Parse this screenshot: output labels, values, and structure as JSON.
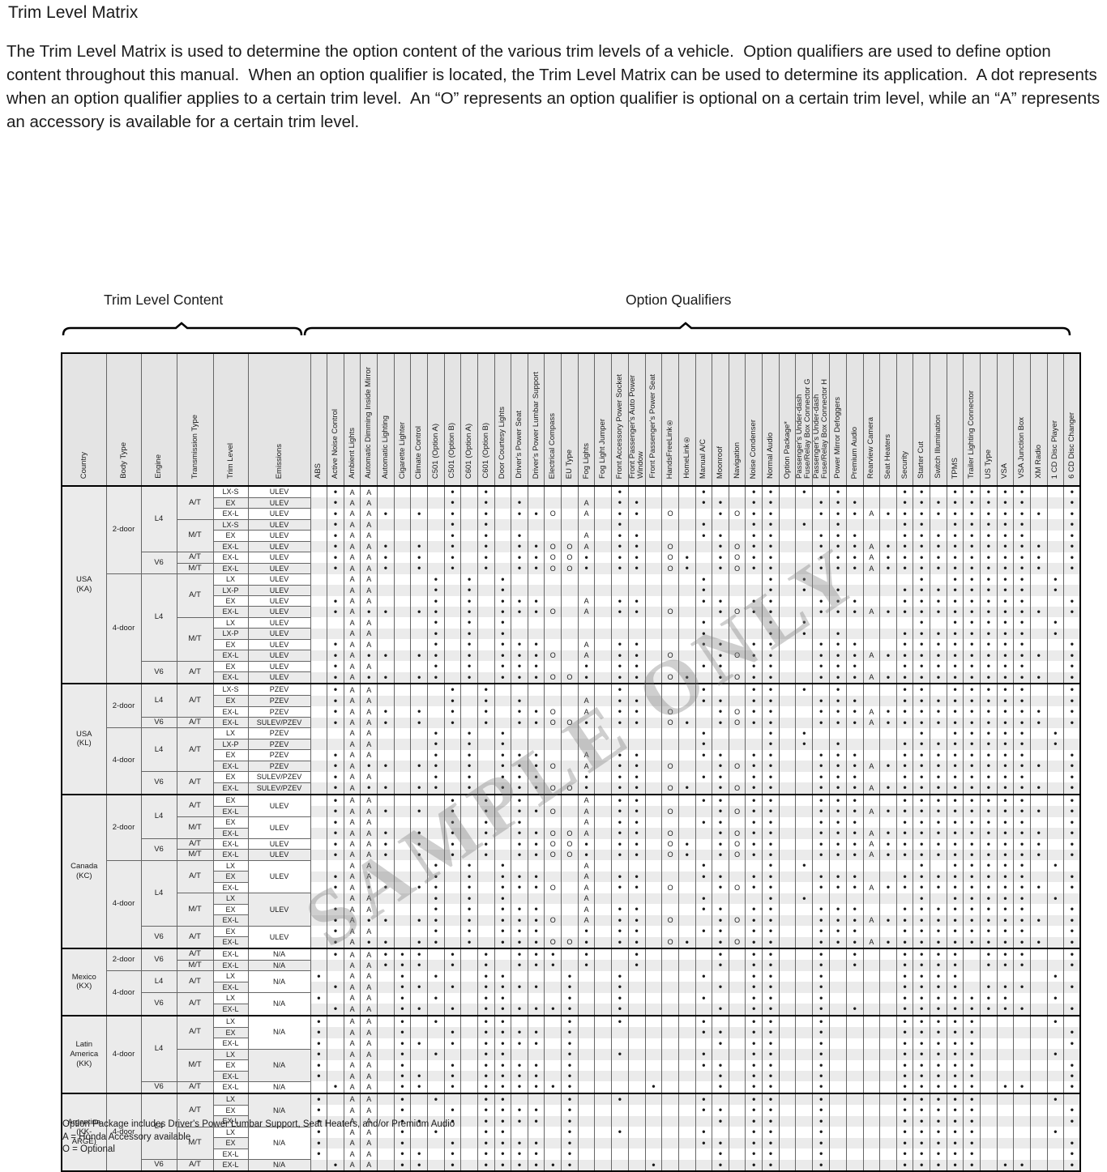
{
  "title": "Trim Level Matrix",
  "intro": "The Trim Level Matrix is used to determine the option content of the various trim levels of a vehicle.  Option qualifiers are used to define option content throughout this manual.  When an option qualifier is located, the Trim Level Matrix can be used to determine its application.  A dot represents when an option qualifier applies to a certain trim level.  An “O” represents an option qualifier is optional on a certain trim level, while an “A” represents an accessory is available for a certain trim level.",
  "section_labels": {
    "left": "Trim Level Content",
    "right": "Option Qualifiers"
  },
  "watermark": "SAMPLE ONLY",
  "legend": {
    "line1": "Option Package includes Driver's Power Lumbar Support, Seat Heaters, and/or Premium Audio",
    "line2": "A = Honda Accessory available",
    "line3": "O = Optional"
  },
  "symbols": {
    "d": "•",
    "A": "A",
    "O": "O"
  },
  "info_headers": [
    "Country",
    "Body Type",
    "Engine",
    "Transmission Type",
    "Trim Level",
    "Emissions"
  ],
  "option_headers": [
    "ABS",
    "Active Noise Control",
    "Ambient Lights",
    "Automatic Dimming Inside Mirror",
    "Automatic Lighting",
    "Cigarette Lighter",
    "Climate Control",
    "C501 (Option A)",
    "C501 (Option B)",
    "C601 (Option A)",
    "C601 (Option B)",
    "Door Courtesy Lights",
    "Driver's Power Seat",
    "Driver's Power Lumbar Support",
    "Electrical Compass",
    "EU Type",
    "Fog Lights",
    "Fog Light Jumper",
    "Front Accessory Power Socket",
    "Front Passenger's Auto Power Window",
    "Front Passenger's Power Seat",
    "HandsFreeLink®",
    "HomeLink®",
    "Manual A/C",
    "Moonroof",
    "Navigation",
    "Noise Condenser",
    "Normal Audio",
    "Option Package*",
    "Passenger's Under-dash Fuse/Relay Box Connector G",
    "Passenger's Under-dash Fuse/Relay Box Connector H",
    "Power Mirror Defoggers",
    "Premium Audio",
    "Rearview Camera",
    "Seat Heaters",
    "Security",
    "Starter Cut",
    "Switch Illumination",
    "TPMS",
    "Trailer Lighting Connector",
    "US Type",
    "VSA",
    "VSA Junction Box",
    "XM Radio",
    "1 CD Disc Player",
    "6 CD Disc Changer"
  ],
  "patterns": {
    "p_lxs": {
      "2": "d",
      "3": "A",
      "4": "A",
      "9": "d",
      "11": "d",
      "19": "d",
      "24": "d",
      "27": "d",
      "28": "d",
      "30": "d",
      "32": "d",
      "36": "d",
      "37": "d",
      "39": "d",
      "40": "d",
      "41": "d",
      "42": "d",
      "43": "d",
      "46": "d"
    },
    "p_ex2": {
      "2": "d",
      "3": "A",
      "4": "A",
      "9": "d",
      "11": "d",
      "13": "d",
      "17": "A",
      "19": "d",
      "20": "d",
      "24": "d",
      "25": "d",
      "27": "d",
      "28": "d",
      "31": "d",
      "32": "d",
      "33": "d",
      "36": "d",
      "37": "d",
      "38": "d",
      "39": "d",
      "40": "d",
      "41": "d",
      "42": "d",
      "43": "d",
      "46": "d"
    },
    "p_exl2": {
      "2": "d",
      "3": "A",
      "4": "A",
      "5": "d",
      "7": "d",
      "9": "d",
      "11": "d",
      "13": "d",
      "14": "d",
      "15": "O",
      "17": "A",
      "19": "d",
      "20": "d",
      "22": "O",
      "25": "d",
      "26": "O",
      "27": "d",
      "28": "d",
      "31": "d",
      "32": "d",
      "33": "d",
      "34": "A",
      "35": "d",
      "36": "d",
      "37": "d",
      "38": "d",
      "39": "d",
      "40": "d",
      "41": "d",
      "42": "d",
      "43": "d",
      "44": "d",
      "46": "d"
    },
    "p_exl2m": {
      "2": "d",
      "3": "A",
      "4": "A",
      "5": "d",
      "7": "d",
      "9": "d",
      "11": "d",
      "13": "d",
      "14": "d",
      "15": "O",
      "16": "O",
      "17": "A",
      "19": "d",
      "20": "d",
      "22": "O",
      "25": "d",
      "26": "O",
      "27": "d",
      "28": "d",
      "31": "d",
      "32": "d",
      "33": "d",
      "34": "A",
      "35": "d",
      "36": "d",
      "37": "d",
      "38": "d",
      "39": "d",
      "40": "d",
      "41": "d",
      "42": "d",
      "43": "d",
      "44": "d",
      "46": "d"
    },
    "p_v6exl2": {
      "2": "d",
      "3": "A",
      "4": "A",
      "5": "d",
      "7": "d",
      "9": "d",
      "11": "d",
      "13": "d",
      "14": "d",
      "15": "O",
      "16": "O",
      "17": "d",
      "19": "d",
      "20": "d",
      "22": "O",
      "23": "d",
      "25": "d",
      "26": "O",
      "27": "d",
      "28": "d",
      "31": "d",
      "32": "d",
      "33": "d",
      "34": "A",
      "35": "d",
      "36": "d",
      "37": "d",
      "38": "d",
      "39": "d",
      "40": "d",
      "41": "d",
      "42": "d",
      "43": "d",
      "44": "d",
      "46": "d"
    },
    "p_lx4": {
      "3": "A",
      "4": "A",
      "8": "d",
      "10": "d",
      "12": "d",
      "24": "d",
      "28": "d",
      "30": "d",
      "37": "d",
      "39": "d",
      "40": "d",
      "41": "d",
      "42": "d",
      "43": "d",
      "45": "d"
    },
    "p_lx4a": {
      "3": "A",
      "4": "A",
      "8": "d",
      "10": "d",
      "12": "d",
      "17": "A",
      "24": "d",
      "28": "d",
      "30": "d",
      "37": "d",
      "39": "d",
      "40": "d",
      "41": "d",
      "42": "d",
      "43": "d",
      "45": "d"
    },
    "p_lxp4": {
      "3": "A",
      "4": "A",
      "8": "d",
      "10": "d",
      "12": "d",
      "24": "d",
      "28": "d",
      "30": "d",
      "32": "d",
      "36": "d",
      "37": "d",
      "38": "d",
      "39": "d",
      "40": "d",
      "41": "d",
      "42": "d",
      "43": "d",
      "45": "d"
    },
    "p_ex4": {
      "2": "d",
      "3": "A",
      "4": "A",
      "8": "d",
      "10": "d",
      "12": "d",
      "13": "d",
      "14": "d",
      "17": "A",
      "19": "d",
      "20": "d",
      "24": "d",
      "25": "d",
      "27": "d",
      "28": "d",
      "31": "d",
      "32": "d",
      "33": "d",
      "36": "d",
      "37": "d",
      "38": "d",
      "39": "d",
      "40": "d",
      "41": "d",
      "42": "d",
      "43": "d",
      "46": "d"
    },
    "p_exl4": {
      "2": "d",
      "3": "A",
      "4": "d",
      "5": "d",
      "7": "d",
      "8": "d",
      "10": "d",
      "12": "d",
      "13": "d",
      "14": "d",
      "15": "O",
      "17": "A",
      "19": "d",
      "20": "d",
      "22": "O",
      "25": "d",
      "26": "O",
      "27": "d",
      "28": "d",
      "31": "d",
      "32": "d",
      "33": "d",
      "34": "A",
      "35": "d",
      "36": "d",
      "37": "d",
      "38": "d",
      "39": "d",
      "40": "d",
      "41": "d",
      "42": "d",
      "43": "d",
      "44": "d",
      "46": "d"
    },
    "p_v6ex4": {
      "2": "d",
      "3": "A",
      "4": "A",
      "8": "d",
      "10": "d",
      "12": "d",
      "13": "d",
      "14": "d",
      "17": "d",
      "19": "d",
      "20": "d",
      "24": "d",
      "25": "d",
      "27": "d",
      "28": "d",
      "31": "d",
      "32": "d",
      "33": "d",
      "36": "d",
      "37": "d",
      "38": "d",
      "39": "d",
      "40": "d",
      "41": "d",
      "42": "d",
      "43": "d",
      "46": "d"
    },
    "p_v6exl4": {
      "2": "d",
      "3": "A",
      "4": "d",
      "5": "d",
      "7": "d",
      "8": "d",
      "10": "d",
      "12": "d",
      "13": "d",
      "14": "d",
      "15": "O",
      "16": "O",
      "17": "d",
      "19": "d",
      "20": "d",
      "22": "O",
      "23": "d",
      "25": "d",
      "26": "O",
      "27": "d",
      "28": "d",
      "31": "d",
      "32": "d",
      "33": "d",
      "34": "A",
      "35": "d",
      "36": "d",
      "37": "d",
      "38": "d",
      "39": "d",
      "40": "d",
      "41": "d",
      "42": "d",
      "43": "d",
      "44": "d",
      "46": "d"
    },
    "p_mx2": {
      "2": "d",
      "3": "A",
      "4": "A",
      "5": "d",
      "6": "d",
      "7": "d",
      "9": "d",
      "11": "d",
      "13": "d",
      "14": "d",
      "15": "d",
      "17": "d",
      "20": "d",
      "25": "d",
      "27": "d",
      "28": "d",
      "31": "d",
      "33": "d",
      "36": "d",
      "37": "d",
      "38": "d",
      "39": "d",
      "41": "d",
      "42": "d",
      "43": "d",
      "46": "d"
    },
    "p_mx2m": {
      "3": "A",
      "4": "A",
      "5": "d",
      "6": "d",
      "7": "d",
      "9": "d",
      "11": "d",
      "13": "d",
      "14": "d",
      "15": "d",
      "17": "d",
      "20": "d",
      "25": "d",
      "27": "d",
      "28": "d",
      "31": "d",
      "33": "d",
      "36": "d",
      "37": "d",
      "38": "d",
      "39": "d",
      "41": "d",
      "42": "d",
      "43": "d",
      "46": "d"
    },
    "p_mxlx": {
      "1": "d",
      "3": "A",
      "4": "A",
      "6": "d",
      "8": "d",
      "11": "d",
      "12": "d",
      "16": "d",
      "19": "d",
      "24": "d",
      "27": "d",
      "28": "d",
      "31": "d",
      "36": "d",
      "37": "d",
      "38": "d",
      "39": "d",
      "45": "d"
    },
    "p_mxexl": {
      "2": "d",
      "3": "A",
      "4": "A",
      "6": "d",
      "7": "d",
      "9": "d",
      "11": "d",
      "12": "d",
      "13": "d",
      "14": "d",
      "16": "d",
      "19": "d",
      "25": "d",
      "27": "d",
      "28": "d",
      "31": "d",
      "36": "d",
      "37": "d",
      "38": "d",
      "39": "d",
      "41": "d",
      "42": "d",
      "43": "d",
      "46": "d"
    },
    "p_mxlx6": {
      "1": "d",
      "3": "A",
      "4": "A",
      "6": "d",
      "8": "d",
      "11": "d",
      "12": "d",
      "16": "d",
      "19": "d",
      "24": "d",
      "27": "d",
      "28": "d",
      "31": "d",
      "36": "d",
      "37": "d",
      "38": "d",
      "39": "d",
      "40": "d",
      "41": "d",
      "42": "d",
      "45": "d"
    },
    "p_mxexl6": {
      "2": "d",
      "3": "A",
      "4": "A",
      "6": "d",
      "7": "d",
      "9": "d",
      "11": "d",
      "12": "d",
      "13": "d",
      "14": "d",
      "15": "d",
      "16": "d",
      "19": "d",
      "25": "d",
      "27": "d",
      "28": "d",
      "31": "d",
      "33": "d",
      "36": "d",
      "37": "d",
      "38": "d",
      "39": "d",
      "40": "d",
      "41": "d",
      "42": "d",
      "43": "d",
      "46": "d"
    },
    "p_lalx": {
      "1": "d",
      "3": "A",
      "4": "A",
      "6": "d",
      "8": "d",
      "11": "d",
      "12": "d",
      "16": "d",
      "19": "d",
      "24": "d",
      "27": "d",
      "28": "d",
      "31": "d",
      "36": "d",
      "37": "d",
      "38": "d",
      "39": "d",
      "40": "d",
      "45": "d"
    },
    "p_laex": {
      "1": "d",
      "3": "A",
      "4": "A",
      "6": "d",
      "9": "d",
      "11": "d",
      "12": "d",
      "13": "d",
      "14": "d",
      "16": "d",
      "24": "d",
      "25": "d",
      "27": "d",
      "28": "d",
      "31": "d",
      "36": "d",
      "37": "d",
      "38": "d",
      "39": "d",
      "40": "d",
      "46": "d"
    },
    "p_laexl": {
      "1": "d",
      "3": "A",
      "4": "A",
      "6": "d",
      "7": "d",
      "9": "d",
      "11": "d",
      "12": "d",
      "13": "d",
      "14": "d",
      "16": "d",
      "25": "d",
      "27": "d",
      "28": "d",
      "31": "d",
      "36": "d",
      "37": "d",
      "38": "d",
      "39": "d",
      "40": "d",
      "46": "d"
    },
    "p_lav6": {
      "2": "d",
      "3": "A",
      "4": "A",
      "6": "d",
      "7": "d",
      "9": "d",
      "11": "d",
      "12": "d",
      "13": "d",
      "14": "d",
      "15": "d",
      "16": "d",
      "21": "d",
      "25": "d",
      "27": "d",
      "28": "d",
      "31": "d",
      "36": "d",
      "37": "d",
      "38": "d",
      "39": "d",
      "40": "d",
      "42": "d",
      "43": "d",
      "46": "d"
    }
  },
  "rows": [
    {
      "sep": true,
      "c": "USA\n(KA)",
      "cs": 18,
      "b": "2-door",
      "bs": 8,
      "e": "L4",
      "es": 6,
      "t": "A/T",
      "ts": 3,
      "trim": "LX-S",
      "em": "ULEV",
      "ems": 1,
      "p": "p_lxs"
    },
    {
      "trim": "EX",
      "em": "ULEV",
      "ems": 1,
      "p": "p_ex2"
    },
    {
      "trim": "EX-L",
      "em": "ULEV",
      "ems": 1,
      "p": "p_exl2"
    },
    {
      "t": "M/T",
      "ts": 3,
      "trim": "LX-S",
      "em": "ULEV",
      "ems": 1,
      "p": "p_lxs"
    },
    {
      "trim": "EX",
      "em": "ULEV",
      "ems": 1,
      "p": "p_ex2"
    },
    {
      "trim": "EX-L",
      "em": "ULEV",
      "ems": 1,
      "p": "p_exl2m"
    },
    {
      "e": "V6",
      "es": 2,
      "t": "A/T",
      "ts": 1,
      "trim": "EX-L",
      "em": "ULEV",
      "ems": 1,
      "p": "p_v6exl2"
    },
    {
      "t": "M/T",
      "ts": 1,
      "trim": "EX-L",
      "em": "ULEV",
      "ems": 1,
      "p": "p_v6exl2"
    },
    {
      "b": "4-door",
      "bs": 10,
      "e": "L4",
      "es": 8,
      "t": "A/T",
      "ts": 4,
      "trim": "LX",
      "em": "ULEV",
      "ems": 1,
      "p": "p_lx4"
    },
    {
      "trim": "LX-P",
      "em": "ULEV",
      "ems": 1,
      "p": "p_lxp4"
    },
    {
      "trim": "EX",
      "em": "ULEV",
      "ems": 1,
      "p": "p_ex4"
    },
    {
      "trim": "EX-L",
      "em": "ULEV",
      "ems": 1,
      "p": "p_exl4"
    },
    {
      "t": "M/T",
      "ts": 4,
      "trim": "LX",
      "em": "ULEV",
      "ems": 1,
      "p": "p_lx4"
    },
    {
      "trim": "LX-P",
      "em": "ULEV",
      "ems": 1,
      "p": "p_lxp4"
    },
    {
      "trim": "EX",
      "em": "ULEV",
      "ems": 1,
      "p": "p_ex4"
    },
    {
      "trim": "EX-L",
      "em": "ULEV",
      "ems": 1,
      "p": "p_exl4"
    },
    {
      "e": "V6",
      "es": 2,
      "t": "A/T",
      "ts": 2,
      "trim": "EX",
      "em": "ULEV",
      "ems": 1,
      "p": "p_v6ex4"
    },
    {
      "trim": "EX-L",
      "em": "ULEV",
      "ems": 1,
      "p": "p_v6exl4"
    },
    {
      "sep": true,
      "c": "USA\n(KL)",
      "cs": 10,
      "b": "2-door",
      "bs": 4,
      "e": "L4",
      "es": 3,
      "t": "A/T",
      "ts": 3,
      "trim": "LX-S",
      "em": "PZEV",
      "ems": 1,
      "p": "p_lxs"
    },
    {
      "trim": "EX",
      "em": "PZEV",
      "ems": 1,
      "p": "p_ex2"
    },
    {
      "trim": "EX-L",
      "em": "PZEV",
      "ems": 1,
      "p": "p_exl2"
    },
    {
      "e": "V6",
      "es": 1,
      "t": "A/T",
      "ts": 1,
      "trim": "EX-L",
      "em": "SULEV/PZEV",
      "ems": 1,
      "p": "p_v6exl2"
    },
    {
      "b": "4-door",
      "bs": 6,
      "e": "L4",
      "es": 4,
      "t": "A/T",
      "ts": 4,
      "trim": "LX",
      "em": "PZEV",
      "ems": 1,
      "p": "p_lx4"
    },
    {
      "trim": "LX-P",
      "em": "PZEV",
      "ems": 1,
      "p": "p_lxp4"
    },
    {
      "trim": "EX",
      "em": "PZEV",
      "ems": 1,
      "p": "p_ex4"
    },
    {
      "trim": "EX-L",
      "em": "PZEV",
      "ems": 1,
      "p": "p_exl4"
    },
    {
      "e": "V6",
      "es": 2,
      "t": "A/T",
      "ts": 2,
      "trim": "EX",
      "em": "SULEV/PZEV",
      "ems": 1,
      "p": "p_v6ex4"
    },
    {
      "trim": "EX-L",
      "em": "SULEV/PZEV",
      "ems": 1,
      "p": "p_v6exl4"
    },
    {
      "sep": true,
      "c": "Canada\n(KC)",
      "cs": 14,
      "b": "2-door",
      "bs": 6,
      "e": "L4",
      "es": 4,
      "t": "A/T",
      "ts": 2,
      "trim": "EX",
      "em": "ULEV",
      "ems": 2,
      "p": "p_ex2"
    },
    {
      "trim": "EX-L",
      "ems": 0,
      "p": "p_exl2"
    },
    {
      "t": "M/T",
      "ts": 2,
      "trim": "EX",
      "em": "ULEV",
      "ems": 2,
      "p": "p_ex2"
    },
    {
      "trim": "EX-L",
      "ems": 0,
      "p": "p_exl2m"
    },
    {
      "e": "V6",
      "es": 2,
      "t": "A/T",
      "ts": 1,
      "trim": "EX-L",
      "em": "ULEV",
      "ems": 1,
      "p": "p_v6exl2"
    },
    {
      "t": "M/T",
      "ts": 1,
      "trim": "EX-L",
      "em": "ULEV",
      "ems": 1,
      "p": "p_v6exl2"
    },
    {
      "b": "4-door",
      "bs": 8,
      "e": "L4",
      "es": 6,
      "t": "A/T",
      "ts": 3,
      "trim": "LX",
      "em": "ULEV",
      "ems": 3,
      "p": "p_lx4a"
    },
    {
      "trim": "EX",
      "ems": 0,
      "p": "p_ex4"
    },
    {
      "trim": "EX-L",
      "ems": 0,
      "p": "p_exl4"
    },
    {
      "t": "M/T",
      "ts": 3,
      "trim": "LX",
      "em": "ULEV",
      "ems": 3,
      "p": "p_lx4a"
    },
    {
      "trim": "EX",
      "ems": 0,
      "p": "p_ex4"
    },
    {
      "trim": "EX-L",
      "ems": 0,
      "p": "p_exl4"
    },
    {
      "e": "V6",
      "es": 2,
      "t": "A/T",
      "ts": 2,
      "trim": "EX",
      "em": "ULEV",
      "ems": 2,
      "p": "p_v6ex4"
    },
    {
      "trim": "EX-L",
      "ems": 0,
      "p": "p_v6exl4"
    },
    {
      "sep": true,
      "c": "Mexico\n(KX)",
      "cs": 6,
      "b": "2-door",
      "bs": 2,
      "e": "V6",
      "es": 2,
      "t": "A/T",
      "ts": 1,
      "trim": "EX-L",
      "em": "N/A",
      "ems": 1,
      "p": "p_mx2"
    },
    {
      "t": "M/T",
      "ts": 1,
      "trim": "EX-L",
      "em": "N/A",
      "ems": 1,
      "p": "p_mx2m"
    },
    {
      "b": "4-door",
      "bs": 4,
      "e": "L4",
      "es": 2,
      "t": "A/T",
      "ts": 2,
      "trim": "LX",
      "em": "N/A",
      "ems": 2,
      "p": "p_mxlx"
    },
    {
      "trim": "EX-L",
      "ems": 0,
      "p": "p_mxexl"
    },
    {
      "e": "V6",
      "es": 2,
      "t": "A/T",
      "ts": 2,
      "trim": "LX",
      "em": "N/A",
      "ems": 2,
      "p": "p_mxlx6"
    },
    {
      "trim": "EX-L",
      "ems": 0,
      "p": "p_mxexl6"
    },
    {
      "sep": true,
      "c": "Latin\nAmerica\n(KK)",
      "cs": 7,
      "b": "4-door",
      "bs": 7,
      "e": "L4",
      "es": 6,
      "t": "A/T",
      "ts": 3,
      "trim": "LX",
      "em": "N/A",
      "ems": 3,
      "p": "p_lalx"
    },
    {
      "trim": "EX",
      "ems": 0,
      "p": "p_laex"
    },
    {
      "trim": "EX-L",
      "ems": 0,
      "p": "p_laexl"
    },
    {
      "t": "M/T",
      "ts": 3,
      "trim": "LX",
      "em": "N/A",
      "ems": 3,
      "p": "p_lalx"
    },
    {
      "trim": "EX",
      "ems": 0,
      "p": "p_laex"
    },
    {
      "trim": "EX-L",
      "ems": 0,
      "p": "p_laexl"
    },
    {
      "e": "V6",
      "es": 1,
      "t": "A/T",
      "ts": 1,
      "trim": "EX-L",
      "em": "N/A",
      "ems": 1,
      "p": "p_lav6"
    },
    {
      "sep": true,
      "c": "Argentina\n(KK-\nARGE)",
      "cs": 7,
      "b": "4-door",
      "bs": 7,
      "e": "L4",
      "es": 6,
      "t": "A/T",
      "ts": 3,
      "trim": "LX",
      "em": "N/A",
      "ems": 3,
      "p": "p_lalx"
    },
    {
      "trim": "EX",
      "ems": 0,
      "p": "p_laex"
    },
    {
      "trim": "EX-L",
      "ems": 0,
      "p": "p_laexl"
    },
    {
      "t": "M/T",
      "ts": 3,
      "trim": "LX",
      "em": "N/A",
      "ems": 3,
      "p": "p_lalx"
    },
    {
      "trim": "EX",
      "ems": 0,
      "p": "p_laex"
    },
    {
      "trim": "EX-L",
      "ems": 0,
      "p": "p_laexl"
    },
    {
      "e": "V6",
      "es": 1,
      "t": "A/T",
      "ts": 1,
      "trim": "EX-L",
      "em": "N/A",
      "ems": 1,
      "p": "p_lav6"
    }
  ]
}
